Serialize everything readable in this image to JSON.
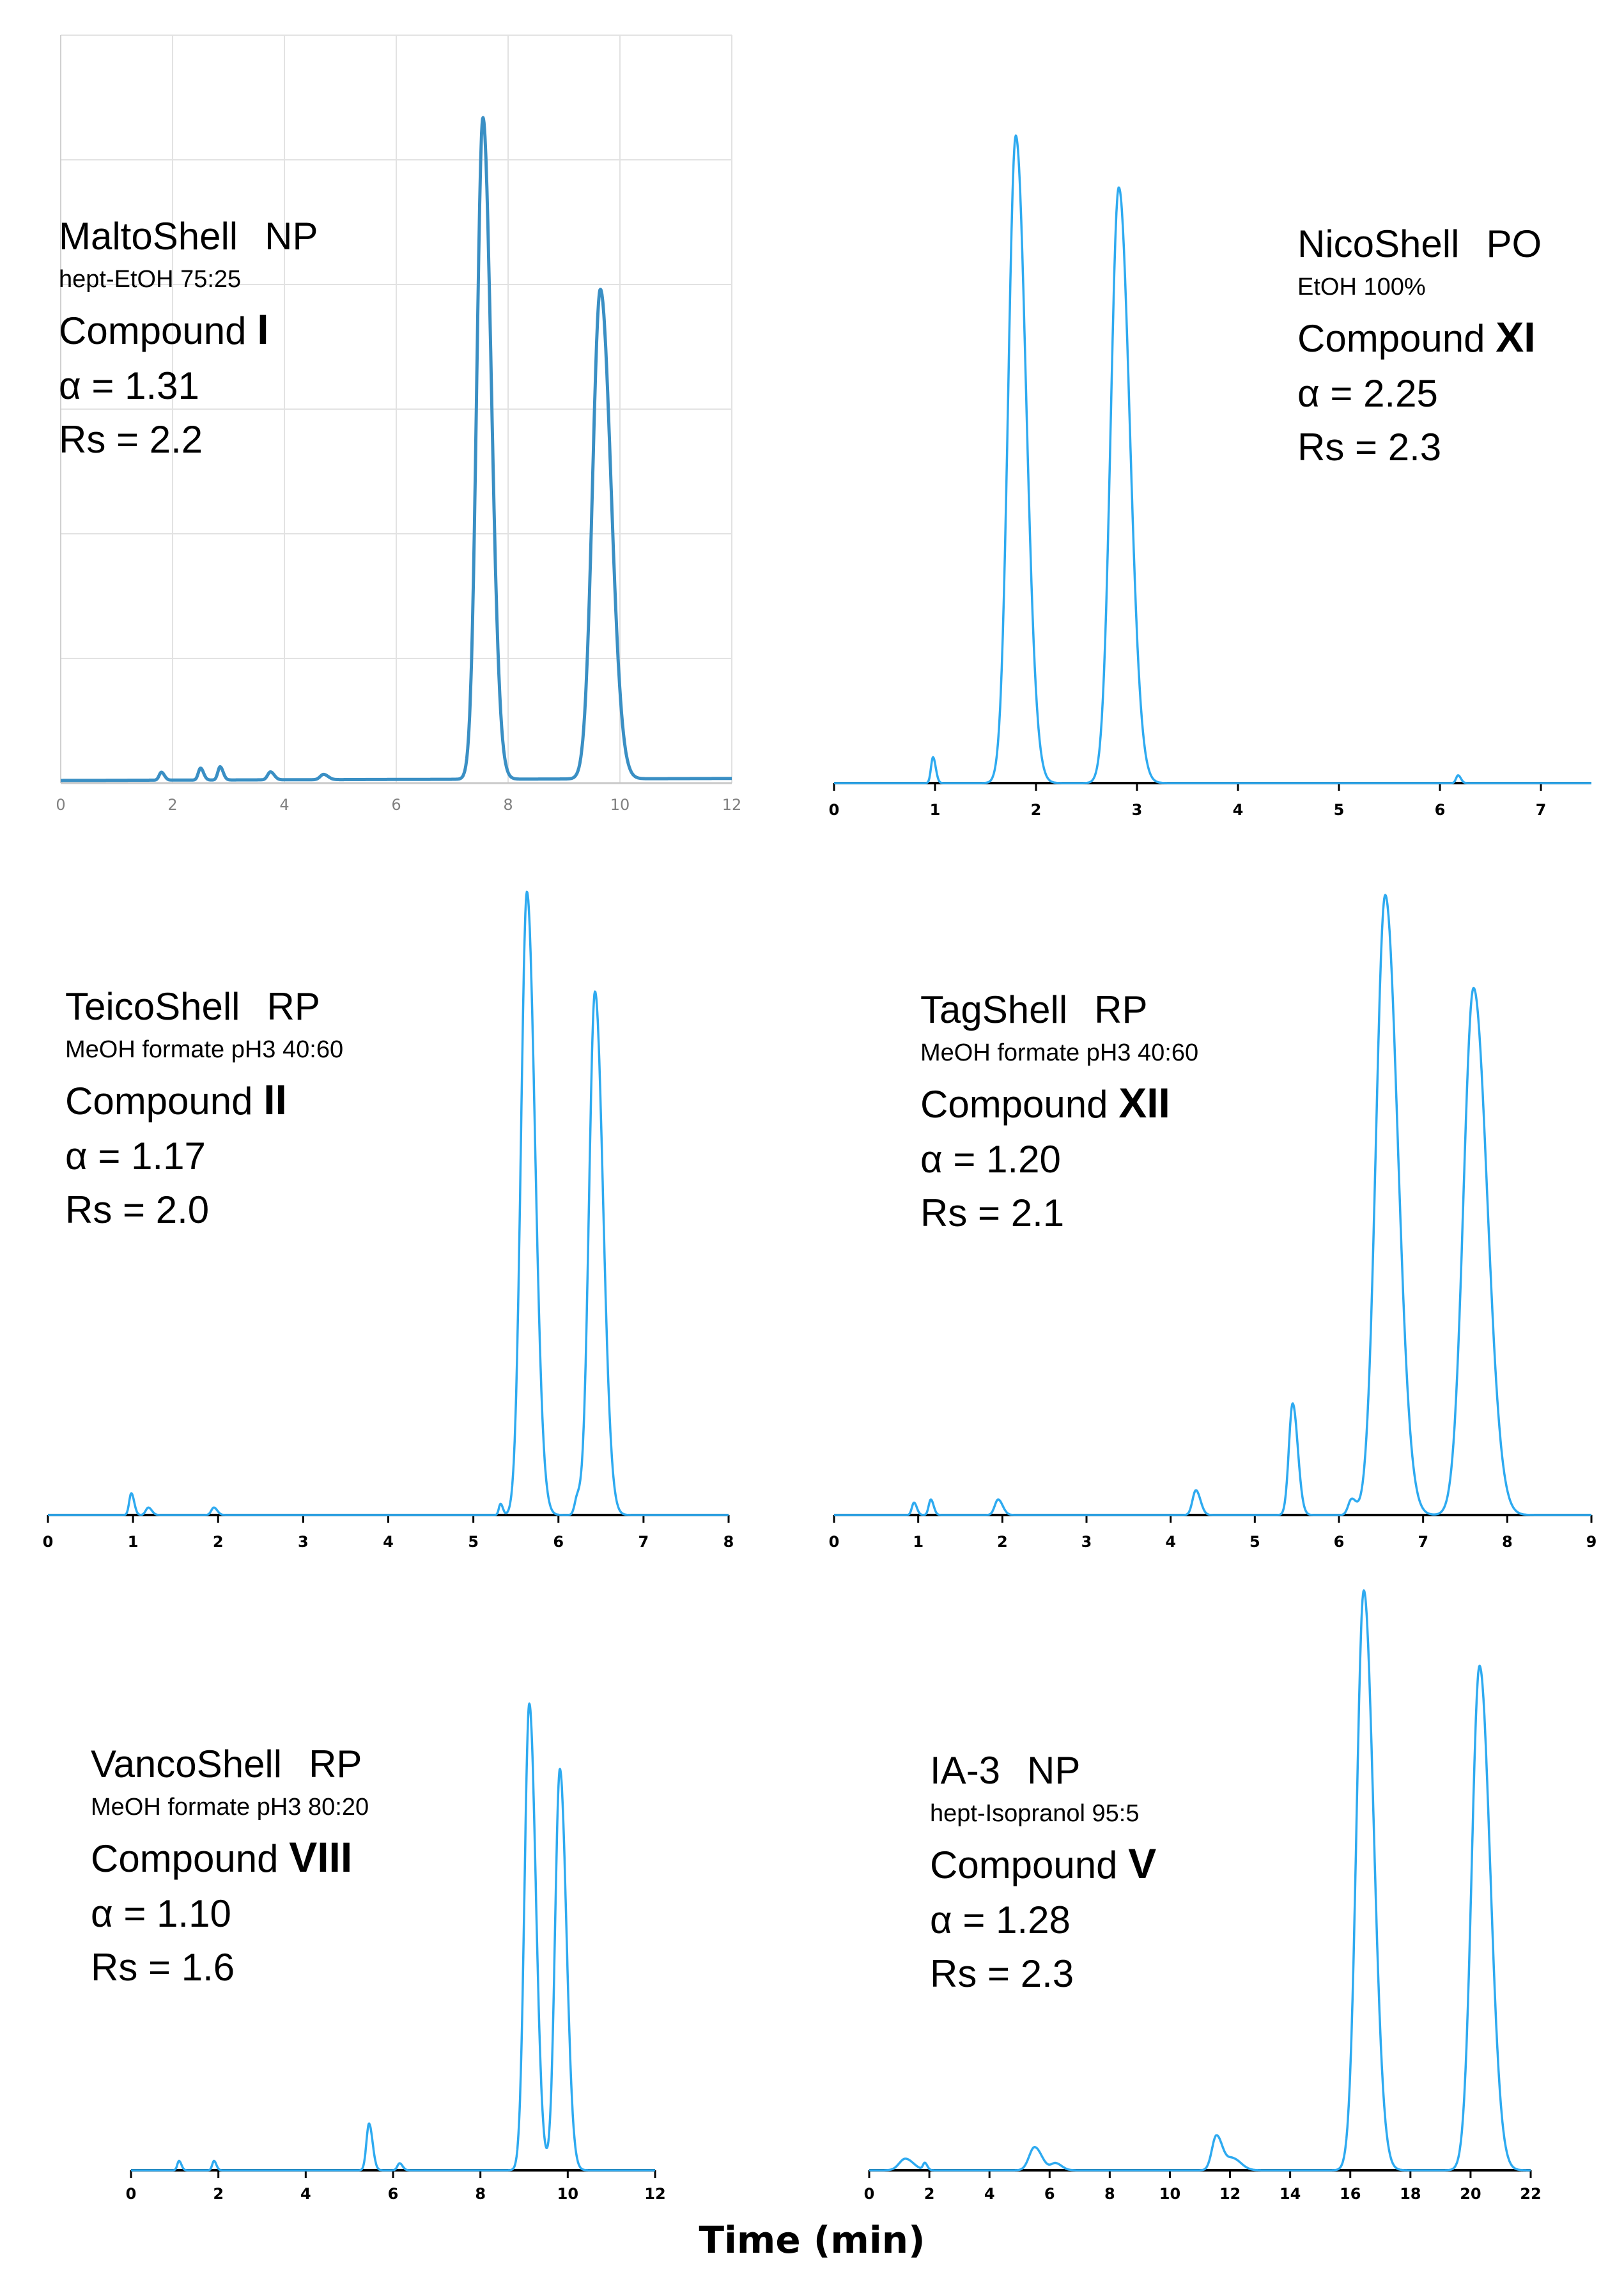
{
  "chart_data": [
    {
      "type": "line",
      "column": "MaltoShell",
      "mode": "NP",
      "mobile_phase": "hept-EtOH 75:25",
      "compound_prefix": "Compound",
      "compound_id": "I",
      "alpha_text": "α = 1.31",
      "rs_text": "Rs = 2.2",
      "alpha": 1.31,
      "rs": 2.2,
      "xlim": [
        0,
        12
      ],
      "xticks": [
        0,
        2,
        4,
        6,
        8,
        10,
        12
      ],
      "grid": true,
      "line_color": "#3a8fc4",
      "peaks": [
        {
          "t": 1.8,
          "h": 0.012,
          "w": 0.04
        },
        {
          "t": 2.5,
          "h": 0.018,
          "w": 0.04
        },
        {
          "t": 2.85,
          "h": 0.02,
          "w": 0.04
        },
        {
          "t": 3.75,
          "h": 0.012,
          "w": 0.05
        },
        {
          "t": 4.7,
          "h": 0.008,
          "w": 0.06
        },
        {
          "t": 7.55,
          "h": 1.0,
          "w": 0.11
        },
        {
          "t": 9.65,
          "h": 0.74,
          "w": 0.14
        }
      ]
    },
    {
      "type": "line",
      "column": "NicoShell",
      "mode": "PO",
      "mobile_phase": "EtOH 100%",
      "compound_prefix": "Compound",
      "compound_id": "XI",
      "alpha_text": "α = 2.25",
      "rs_text": "Rs = 2.3",
      "alpha": 2.25,
      "rs": 2.3,
      "xlim": [
        0,
        7.5
      ],
      "xticks": [
        0,
        1,
        2,
        3,
        4,
        5,
        6,
        7
      ],
      "grid": false,
      "line_color": "#2eaaf0",
      "peaks": [
        {
          "t": 0.98,
          "h": 0.04,
          "w": 0.02
        },
        {
          "t": 1.8,
          "h": 1.0,
          "w": 0.075
        },
        {
          "t": 2.82,
          "h": 0.92,
          "w": 0.08
        },
        {
          "t": 6.18,
          "h": 0.012,
          "w": 0.02
        }
      ]
    },
    {
      "type": "line",
      "column": "TeicoShell",
      "mode": "RP",
      "mobile_phase": "MeOH formate pH3 40:60",
      "compound_prefix": "Compound",
      "compound_id": "II",
      "alpha_text": "α = 1.17",
      "rs_text": "Rs = 2.0",
      "alpha": 1.17,
      "rs": 2.0,
      "xlim": [
        0,
        8
      ],
      "xticks": [
        0,
        1,
        2,
        3,
        4,
        5,
        6,
        7,
        8
      ],
      "grid": false,
      "line_color": "#2eaaf0",
      "peaks": [
        {
          "t": 0.98,
          "h": 0.035,
          "w": 0.025
        },
        {
          "t": 1.18,
          "h": 0.012,
          "w": 0.03
        },
        {
          "t": 1.95,
          "h": 0.012,
          "w": 0.03
        },
        {
          "t": 5.32,
          "h": 0.018,
          "w": 0.02
        },
        {
          "t": 5.63,
          "h": 1.0,
          "w": 0.07
        },
        {
          "t": 6.22,
          "h": 0.025,
          "w": 0.03
        },
        {
          "t": 6.43,
          "h": 0.84,
          "w": 0.07
        }
      ]
    },
    {
      "type": "line",
      "column": "TagShell",
      "mode": "RP",
      "mobile_phase": "MeOH formate pH3 40:60",
      "compound_prefix": "Compound",
      "compound_id": "XII",
      "alpha_text": "α = 1.20",
      "rs_text": "Rs = 2.1",
      "alpha": 1.2,
      "rs": 2.1,
      "xlim": [
        0,
        9
      ],
      "xticks": [
        0,
        1,
        2,
        3,
        4,
        5,
        6,
        7,
        8,
        9
      ],
      "grid": false,
      "line_color": "#2eaaf0",
      "peaks": [
        {
          "t": 0.95,
          "h": 0.02,
          "w": 0.025
        },
        {
          "t": 1.15,
          "h": 0.025,
          "w": 0.025
        },
        {
          "t": 1.95,
          "h": 0.025,
          "w": 0.04
        },
        {
          "t": 4.3,
          "h": 0.04,
          "w": 0.04
        },
        {
          "t": 5.45,
          "h": 0.18,
          "w": 0.045
        },
        {
          "t": 6.15,
          "h": 0.025,
          "w": 0.04
        },
        {
          "t": 6.55,
          "h": 1.0,
          "w": 0.11
        },
        {
          "t": 7.6,
          "h": 0.85,
          "w": 0.12
        }
      ]
    },
    {
      "type": "line",
      "column": "VancoShell",
      "mode": "RP",
      "mobile_phase": "MeOH formate pH3 80:20",
      "compound_prefix": "Compound",
      "compound_id": "VIII",
      "alpha_text": "α = 1.10",
      "rs_text": "Rs = 1.6",
      "alpha": 1.1,
      "rs": 1.6,
      "xlim": [
        0,
        12
      ],
      "xticks": [
        0,
        2,
        4,
        6,
        8,
        10,
        12
      ],
      "grid": false,
      "line_color": "#2eaaf0",
      "peaks": [
        {
          "t": 1.1,
          "h": 0.02,
          "w": 0.04
        },
        {
          "t": 1.9,
          "h": 0.02,
          "w": 0.04
        },
        {
          "t": 5.45,
          "h": 0.1,
          "w": 0.06
        },
        {
          "t": 6.15,
          "h": 0.015,
          "w": 0.05
        },
        {
          "t": 9.12,
          "h": 1.0,
          "w": 0.11
        },
        {
          "t": 9.82,
          "h": 0.86,
          "w": 0.11
        }
      ]
    },
    {
      "type": "line",
      "column": "IA-3",
      "mode": "NP",
      "mobile_phase": "hept-Isopranol 95:5",
      "compound_prefix": "Compound",
      "compound_id": "V",
      "alpha_text": "α = 1.28",
      "rs_text": "Rs = 2.3",
      "alpha": 1.28,
      "rs": 2.3,
      "xlim": [
        0,
        22
      ],
      "xticks": [
        0,
        2,
        4,
        6,
        8,
        10,
        12,
        14,
        16,
        18,
        20,
        22
      ],
      "grid": false,
      "line_color": "#2eaaf0",
      "peaks": [
        {
          "t": 1.2,
          "h": 0.02,
          "w": 0.2
        },
        {
          "t": 1.85,
          "h": 0.012,
          "w": 0.06
        },
        {
          "t": 5.5,
          "h": 0.04,
          "w": 0.18
        },
        {
          "t": 6.2,
          "h": 0.012,
          "w": 0.15
        },
        {
          "t": 11.55,
          "h": 0.06,
          "w": 0.15
        },
        {
          "t": 12.1,
          "h": 0.02,
          "w": 0.2
        },
        {
          "t": 16.45,
          "h": 1.0,
          "w": 0.24
        },
        {
          "t": 20.3,
          "h": 0.87,
          "w": 0.26
        }
      ]
    }
  ],
  "xlabel": "Time (min)"
}
